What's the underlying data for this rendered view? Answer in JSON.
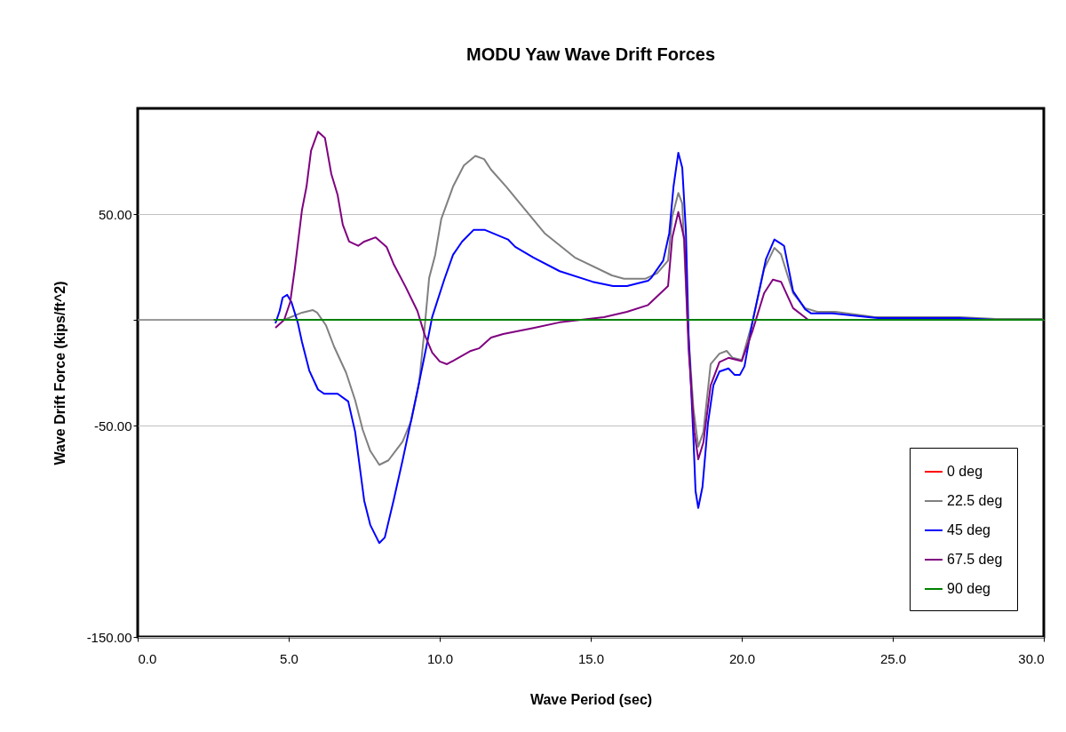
{
  "chart_data": {
    "type": "line",
    "title": "MODU Yaw Wave Drift Forces",
    "xlabel": "Wave Period (sec)",
    "ylabel": "Wave Drift Force (kips/ft^2)",
    "xlim": [
      0,
      30
    ],
    "ylim": [
      -150,
      100
    ],
    "xticks": [
      {
        "value": 0,
        "label": "0.0"
      },
      {
        "value": 5,
        "label": "5.0"
      },
      {
        "value": 10,
        "label": "10.0"
      },
      {
        "value": 15,
        "label": "15.0"
      },
      {
        "value": 20,
        "label": "20.0"
      },
      {
        "value": 25,
        "label": "25.0"
      },
      {
        "value": 30,
        "label": "30.0"
      }
    ],
    "yticks": [
      {
        "value": -150,
        "label": "-150.00"
      },
      {
        "value": -50,
        "label": "-50.00"
      },
      {
        "value": 0,
        "label": null
      },
      {
        "value": 50,
        "label": "50.00"
      }
    ],
    "grid": "y",
    "legend": "bottom right",
    "marker": "none",
    "line_style": "solid",
    "ref_lines": [
      {
        "axis": "y",
        "value": 0,
        "color": "#808080"
      }
    ],
    "series": [
      {
        "name": "0 deg",
        "color": "#ff0000"
      },
      {
        "name": "22.5 deg",
        "color": "#808080",
        "x": [
          4.56,
          4.85,
          5.44,
          5.8,
          5.94,
          6.23,
          6.5,
          6.9,
          7.2,
          7.45,
          7.7,
          8.0,
          8.3,
          8.77,
          9.06,
          9.32,
          9.47,
          9.65,
          9.85,
          10.05,
          10.44,
          10.8,
          11.18,
          11.47,
          11.7,
          12.2,
          12.6,
          13.47,
          14.47,
          15.7,
          16.1,
          16.8,
          17.2,
          17.56,
          17.7,
          17.9,
          18.03,
          18.2,
          18.4,
          18.56,
          18.73,
          18.97,
          19.26,
          19.5,
          19.7,
          20.0,
          20.35,
          20.74,
          21.08,
          21.3,
          21.7,
          22.1,
          22.5,
          23.1,
          24.2,
          24.4,
          27.2,
          28.4,
          29.95
        ],
        "values": [
          0,
          0,
          3.4,
          4.6,
          3.4,
          -2.5,
          -12.6,
          -25,
          -38,
          -52,
          -62,
          -68.6,
          -66.5,
          -57.6,
          -47.6,
          -29.5,
          -8.4,
          19.8,
          30.7,
          47.6,
          63,
          73,
          77.5,
          76,
          71,
          63,
          56,
          41,
          29.5,
          21,
          19.4,
          19.4,
          22,
          28,
          49,
          60,
          55,
          0,
          -42,
          -60,
          -53,
          -21,
          -16,
          -14.7,
          -18,
          -19,
          -1.3,
          24,
          34,
          31,
          12.6,
          5.5,
          3.8,
          3.8,
          1.7,
          1.3,
          1.3,
          0.4,
          0.4
        ]
      },
      {
        "name": "45 deg",
        "color": "#0000ff",
        "x": [
          4.56,
          4.7,
          4.8,
          4.95,
          5.09,
          5.3,
          5.44,
          5.68,
          5.97,
          6.18,
          6.62,
          6.97,
          7.2,
          7.5,
          7.7,
          8.0,
          8.18,
          8.47,
          8.77,
          9.26,
          9.56,
          9.75,
          10.15,
          10.44,
          10.74,
          11.12,
          11.5,
          12.26,
          12.5,
          13.1,
          13.97,
          15.06,
          15.74,
          16.2,
          16.9,
          17.0,
          17.4,
          17.6,
          17.74,
          17.9,
          18.03,
          18.15,
          18.24,
          18.4,
          18.47,
          18.56,
          18.7,
          18.88,
          19.06,
          19.26,
          19.56,
          19.76,
          19.94,
          20.09,
          20.35,
          20.8,
          21.08,
          21.3,
          21.4,
          21.7,
          22.1,
          22.3,
          23.0,
          24.2,
          24.5,
          27.2,
          28.4
        ],
        "values": [
          -1.7,
          4.2,
          10.5,
          11.8,
          8.4,
          -1.3,
          -10.5,
          -24,
          -33,
          -35,
          -35,
          -38.6,
          -53,
          -85.6,
          -97,
          -105.6,
          -103,
          -85.6,
          -66.5,
          -33.7,
          -12.6,
          1.3,
          19,
          30.7,
          37,
          42.5,
          42.5,
          38,
          34.5,
          29.5,
          23,
          18,
          16,
          16,
          18.5,
          19.8,
          28,
          41,
          63,
          79,
          72,
          42,
          -7,
          -56,
          -81,
          -89,
          -79,
          -49,
          -31,
          -24.5,
          -23,
          -26,
          -26,
          -22,
          -1.3,
          28.6,
          38,
          36,
          35,
          13.5,
          5,
          3,
          3,
          1.3,
          0.8,
          0.8,
          0
        ]
      },
      {
        "name": "67.5 deg",
        "color": "#800080",
        "x": [
          4.56,
          4.85,
          5.05,
          5.2,
          5.44,
          5.59,
          5.74,
          5.97,
          6.2,
          6.41,
          6.62,
          6.79,
          7.0,
          7.3,
          7.5,
          7.88,
          8.24,
          8.47,
          8.87,
          9.26,
          9.5,
          9.75,
          10.0,
          10.24,
          11.03,
          11.3,
          11.7,
          12.1,
          13.1,
          13.97,
          15.44,
          16.2,
          16.9,
          17.56,
          17.7,
          17.9,
          18.1,
          18.24,
          18.43,
          18.56,
          18.73,
          18.97,
          19.26,
          19.56,
          20.0,
          20.35,
          20.74,
          21.03,
          21.3,
          21.7,
          22.2
        ],
        "values": [
          -3.8,
          0,
          8.4,
          24,
          52,
          63,
          80,
          89,
          86,
          69,
          59,
          45,
          37,
          35,
          37,
          39,
          34.5,
          26.5,
          15.6,
          4.2,
          -7,
          -15.5,
          -19.7,
          -21,
          -14.7,
          -13.5,
          -8.4,
          -6.7,
          -3.9,
          -1.2,
          1.3,
          3.8,
          7,
          16,
          39,
          51,
          38,
          -14,
          -53,
          -66,
          -58,
          -31,
          -20,
          -18,
          -19.5,
          -5.5,
          12.6,
          19,
          18,
          5.5,
          0
        ]
      },
      {
        "name": "90 deg",
        "color": "#008000",
        "x": [
          4.5,
          30
        ],
        "values": [
          0,
          0
        ]
      }
    ]
  }
}
